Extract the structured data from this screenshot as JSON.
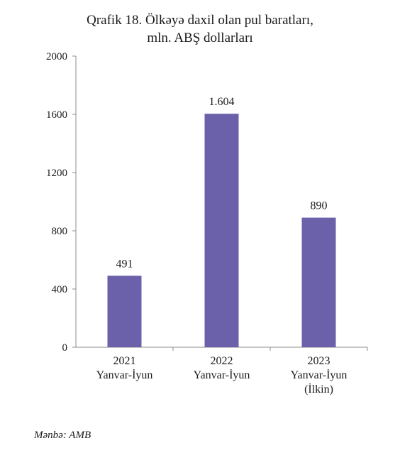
{
  "chart_data": {
    "type": "bar",
    "title_line1": "Qrafik  18. Ölkəyə daxil  olan pul baratları,",
    "title_line2": "mln.  ABŞ dollarları",
    "categories": [
      [
        "2021",
        "Yanvar-İyun"
      ],
      [
        "2022",
        "Yanvar-İyun"
      ],
      [
        "2023",
        "Yanvar-İyun",
        "(İlkin)"
      ]
    ],
    "values": [
      491,
      1604,
      890
    ],
    "value_labels": [
      "491",
      "1.604",
      "890"
    ],
    "yticks": [
      "0",
      "400",
      "800",
      "1200",
      "1600",
      "2000"
    ],
    "ylim": [
      0,
      2000
    ],
    "bar_color": "#6b61ab",
    "grid": false,
    "legend": false
  },
  "source": "Mənbə: AMB"
}
